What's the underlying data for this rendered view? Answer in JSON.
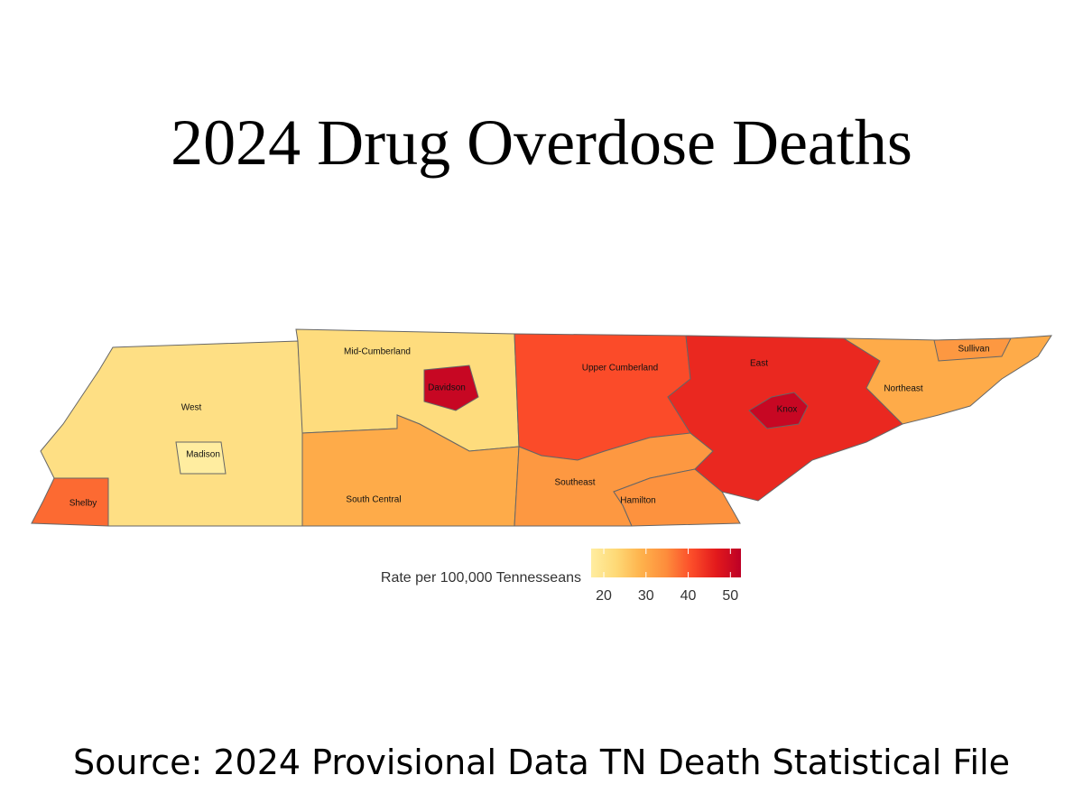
{
  "title": "2024 Drug Overdose Deaths",
  "source": "Source: 2024 Provisional Data TN Death Statistical File",
  "map": {
    "type": "choropleth",
    "regions": [
      {
        "name": "West",
        "value": 21
      },
      {
        "name": "Madison",
        "value": 17
      },
      {
        "name": "Shelby",
        "value": 38
      },
      {
        "name": "Mid-Cumberland",
        "value": 22
      },
      {
        "name": "Davidson",
        "value": 51
      },
      {
        "name": "South Central",
        "value": 30
      },
      {
        "name": "Upper Cumberland",
        "value": 41
      },
      {
        "name": "Southeast",
        "value": 33
      },
      {
        "name": "Hamilton",
        "value": 34
      },
      {
        "name": "East",
        "value": 45
      },
      {
        "name": "Knox",
        "value": 51
      },
      {
        "name": "Northeast",
        "value": 30
      },
      {
        "name": "Sullivan",
        "value": 33
      }
    ],
    "legend": {
      "title": "Rate per 100,000 Tennesseans",
      "lim": [
        17,
        52.5
      ],
      "ticks": [
        20,
        30,
        40,
        50
      ],
      "colors": [
        "#ffeda0",
        "#fed976",
        "#feb24c",
        "#fd8d3c",
        "#fc4e2a",
        "#e31a1c",
        "#bd0026"
      ]
    }
  }
}
